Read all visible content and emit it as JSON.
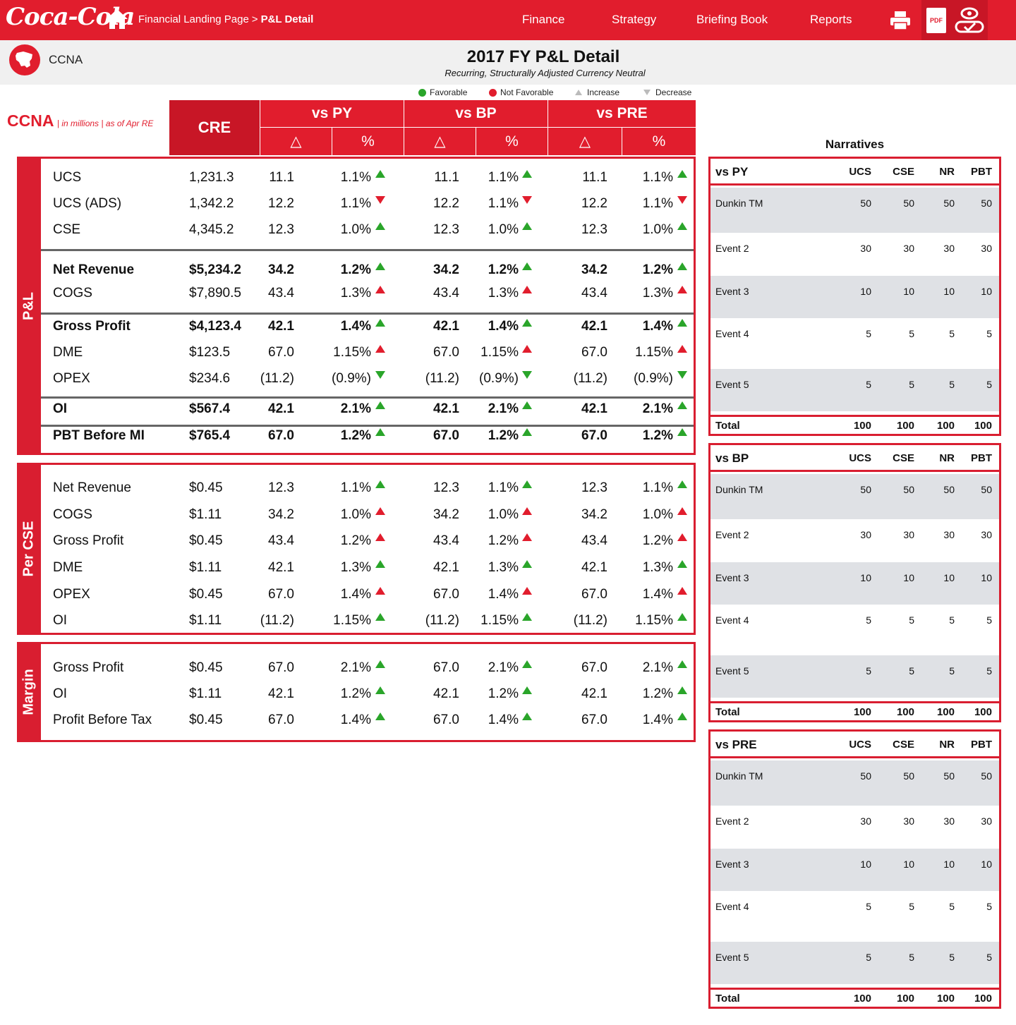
{
  "topbar": {
    "logo": "Coca-Cola",
    "breadcrumb": {
      "parent": "Financial Landing Page",
      "separator": ">",
      "current": "P&L Detail"
    },
    "nav": [
      "Finance",
      "Strategy",
      "Briefing Book",
      "Reports"
    ],
    "tools": {
      "print": "printer-icon",
      "pdf_label": "PDF",
      "review": "eye-check-icon"
    }
  },
  "titleband": {
    "entity": "CCNA",
    "title": "2017 FY P&L Detail",
    "subtitle": "Recurring, Structurally Adjusted Currency Neutral"
  },
  "legend": {
    "favorable": "Favorable",
    "not_favorable": "Not Favorable",
    "increase": "Increase",
    "decrease": "Decrease"
  },
  "table_header": {
    "entity": "CCNA",
    "note": "| in millions | as of Apr RE",
    "cre": "CRE",
    "groups": [
      "vs PY",
      "vs BP",
      "vs PRE"
    ],
    "delta": "△",
    "pct": "%"
  },
  "colors": {
    "brand_red": "#e11d2d",
    "favorable": "#2aa52a",
    "not_favorable": "#e11d2d"
  },
  "sections": {
    "pl": {
      "label": "P&L",
      "rows": [
        {
          "label": "UCS",
          "cre": "1,231.3",
          "d": "11.1",
          "p": "1.1%",
          "arrow": "up-g"
        },
        {
          "label": "UCS (ADS)",
          "cre": "1,342.2",
          "d": "12.2",
          "p": "1.1%",
          "arrow": "dn-r"
        },
        {
          "label": "CSE",
          "cre": "4,345.2",
          "d": "12.3",
          "p": "1.0%",
          "arrow": "up-g"
        },
        {
          "label": "Net Revenue",
          "cre": "$5,234.2",
          "d": "34.2",
          "p": "1.2%",
          "arrow": "up-g",
          "bold": true
        },
        {
          "label": "COGS",
          "cre": "$7,890.5",
          "d": "43.4",
          "p": "1.3%",
          "arrow": "up-r"
        },
        {
          "label": "Gross Profit",
          "cre": "$4,123.4",
          "d": "42.1",
          "p": "1.4%",
          "arrow": "up-g",
          "bold": true
        },
        {
          "label": "DME",
          "cre": "$123.5",
          "d": "67.0",
          "p": "1.15%",
          "arrow": "up-r"
        },
        {
          "label": "OPEX",
          "cre": "$234.6",
          "d": "(11.2)",
          "p": "(0.9%)",
          "arrow": "dn-g"
        },
        {
          "label": "OI",
          "cre": "$567.4",
          "d": "42.1",
          "p": "2.1%",
          "arrow": "up-g",
          "bold": true
        },
        {
          "label": "PBT Before MI",
          "cre": "$765.4",
          "d": "67.0",
          "p": "1.2%",
          "arrow": "up-g",
          "bold": true
        }
      ]
    },
    "per_cse": {
      "label": "Per CSE",
      "rows": [
        {
          "label": "Net Revenue",
          "cre": "$0.45",
          "d": "12.3",
          "p": "1.1%",
          "arrow": "up-g"
        },
        {
          "label": "COGS",
          "cre": "$1.11",
          "d": "34.2",
          "p": "1.0%",
          "arrow": "up-r"
        },
        {
          "label": "Gross Profit",
          "cre": "$0.45",
          "d": "43.4",
          "p": "1.2%",
          "arrow": "up-r"
        },
        {
          "label": "DME",
          "cre": "$1.11",
          "d": "42.1",
          "p": "1.3%",
          "arrow": "up-g"
        },
        {
          "label": "OPEX",
          "cre": "$0.45",
          "d": "67.0",
          "p": "1.4%",
          "arrow": "up-r"
        },
        {
          "label": "OI",
          "cre": "$1.11",
          "d": "(11.2)",
          "p": "1.15%",
          "arrow": "up-g"
        }
      ]
    },
    "margin": {
      "label": "Margin",
      "rows": [
        {
          "label": "Gross Profit",
          "cre": "$0.45",
          "d": "67.0",
          "p": "2.1%",
          "arrow": "up-g"
        },
        {
          "label": "OI",
          "cre": "$1.11",
          "d": "42.1",
          "p": "1.2%",
          "arrow": "up-g"
        },
        {
          "label": "Profit Before Tax",
          "cre": "$0.45",
          "d": "67.0",
          "p": "1.4%",
          "arrow": "up-g"
        }
      ]
    }
  },
  "narratives": {
    "title": "Narratives",
    "columns": [
      "UCS",
      "CSE",
      "NR",
      "PBT"
    ],
    "tables": [
      {
        "name": "vs PY",
        "rows": [
          {
            "label": "Dunkin TM",
            "v": [
              "50",
              "50",
              "50",
              "50"
            ]
          },
          {
            "label": "Event 2",
            "v": [
              "30",
              "30",
              "30",
              "30"
            ]
          },
          {
            "label": "Event 3",
            "v": [
              "10",
              "10",
              "10",
              "10"
            ]
          },
          {
            "label": "Event 4",
            "v": [
              "5",
              "5",
              "5",
              "5"
            ]
          },
          {
            "label": "Event 5",
            "v": [
              "5",
              "5",
              "5",
              "5"
            ]
          }
        ],
        "total_label": "Total",
        "total": [
          "100",
          "100",
          "100",
          "100"
        ]
      },
      {
        "name": "vs BP",
        "rows": [
          {
            "label": "Dunkin TM",
            "v": [
              "50",
              "50",
              "50",
              "50"
            ]
          },
          {
            "label": "Event 2",
            "v": [
              "30",
              "30",
              "30",
              "30"
            ]
          },
          {
            "label": "Event 3",
            "v": [
              "10",
              "10",
              "10",
              "10"
            ]
          },
          {
            "label": "Event 4",
            "v": [
              "5",
              "5",
              "5",
              "5"
            ]
          },
          {
            "label": "Event 5",
            "v": [
              "5",
              "5",
              "5",
              "5"
            ]
          }
        ],
        "total_label": "Total",
        "total": [
          "100",
          "100",
          "100",
          "100"
        ]
      },
      {
        "name": "vs PRE",
        "rows": [
          {
            "label": "Dunkin TM",
            "v": [
              "50",
              "50",
              "50",
              "50"
            ]
          },
          {
            "label": "Event 2",
            "v": [
              "30",
              "30",
              "30",
              "30"
            ]
          },
          {
            "label": "Event 3",
            "v": [
              "10",
              "10",
              "10",
              "10"
            ]
          },
          {
            "label": "Event 4",
            "v": [
              "5",
              "5",
              "5",
              "5"
            ]
          },
          {
            "label": "Event 5",
            "v": [
              "5",
              "5",
              "5",
              "5"
            ]
          }
        ],
        "total_label": "Total",
        "total": [
          "100",
          "100",
          "100",
          "100"
        ]
      }
    ]
  }
}
